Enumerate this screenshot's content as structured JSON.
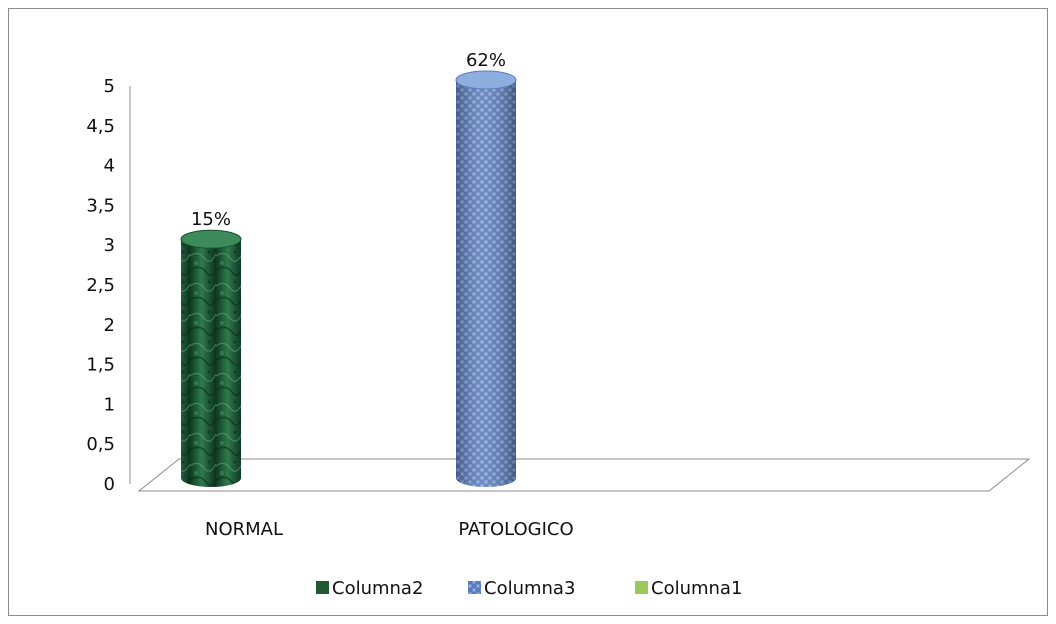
{
  "chart_data": {
    "type": "bar",
    "style": "3d-cylinder",
    "categories": [
      "NORMAL",
      "PATOLOGICO"
    ],
    "series": [
      {
        "name": "Columna2",
        "values": [
          3,
          null
        ],
        "data_labels": [
          "15%",
          ""
        ],
        "color": "#1f5a35",
        "fill": "green marble texture"
      },
      {
        "name": "Columna3",
        "values": [
          null,
          5
        ],
        "data_labels": [
          "",
          "62%"
        ],
        "color": "#6e8ec9",
        "fill": "blue woven texture"
      },
      {
        "name": "Columna1",
        "values": [
          null,
          null
        ],
        "data_labels": [
          "",
          ""
        ],
        "color": "#9bc85a",
        "fill": "solid"
      }
    ],
    "y_ticks": [
      "0",
      "0,5",
      "1",
      "1,5",
      "2",
      "2,5",
      "3",
      "3,5",
      "4",
      "4,5",
      "5"
    ],
    "ylim": [
      0,
      5
    ],
    "grid": false,
    "legend_position": "bottom",
    "title": "",
    "xlabel": "",
    "ylabel": ""
  }
}
